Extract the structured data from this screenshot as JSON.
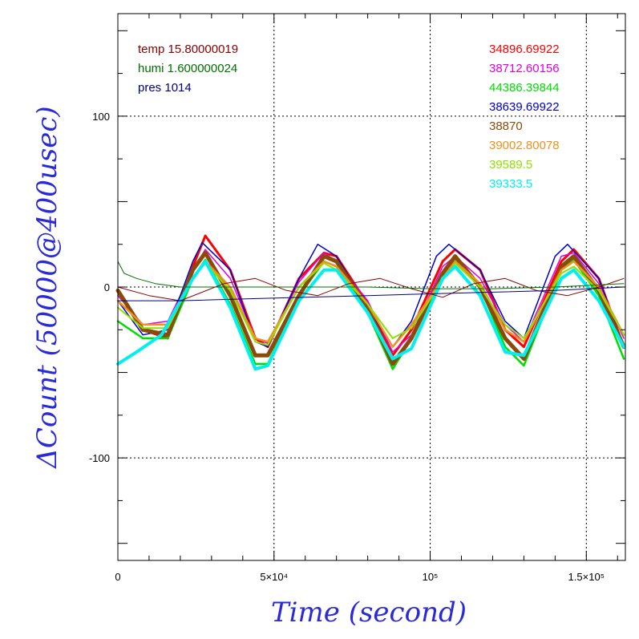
{
  "chart_data": {
    "type": "line",
    "xlabel": "Time (second)",
    "ylabel": "ΔCount (50000@400usec)",
    "xlim": [
      0,
      162500
    ],
    "ylim": [
      -160,
      160
    ],
    "x_ticks": [
      {
        "value": 0,
        "label": "0"
      },
      {
        "value": 50000,
        "label": "5×10⁴"
      },
      {
        "value": 100000,
        "label": "10⁵"
      },
      {
        "value": 150000,
        "label": "1.5×10⁵"
      }
    ],
    "y_ticks": [
      {
        "value": -100,
        "label": "-100"
      },
      {
        "value": 0,
        "label": "0"
      },
      {
        "value": 100,
        "label": "100"
      }
    ],
    "grid": true,
    "legend_env": [
      {
        "label": "temp 15.80000019",
        "color": "#8b0000"
      },
      {
        "label": "humi 1.600000024",
        "color": "#007000"
      },
      {
        "label": "pres 1014",
        "color": "#000080"
      }
    ],
    "legend_counts": [
      {
        "label": "34896.69922",
        "color": "#ff0000"
      },
      {
        "label": "38712.60156",
        "color": "#e000e0"
      },
      {
        "label": "44386.39844",
        "color": "#00dd00"
      },
      {
        "label": "38639.69922",
        "color": "#0000c8"
      },
      {
        "label": "38870",
        "color": "#8b4a0a"
      },
      {
        "label": "39002.80078",
        "color": "#f09020"
      },
      {
        "label": "39589.5",
        "color": "#90e000"
      },
      {
        "label": "39333.5",
        "color": "#00f0f0"
      }
    ],
    "series": [
      {
        "color": "#ff0000",
        "x": [
          0,
          8000,
          16000,
          24000,
          28000,
          36000,
          44000,
          48000,
          58000,
          66000,
          70000,
          80000,
          88000,
          94000,
          104000,
          108000,
          116000,
          124000,
          130000,
          142000,
          146000,
          154000,
          162000
        ],
        "y": [
          -2,
          -25,
          -30,
          12,
          30,
          10,
          -30,
          -35,
          5,
          20,
          18,
          -10,
          -40,
          -25,
          15,
          22,
          10,
          -25,
          -35,
          15,
          22,
          5,
          -35
        ],
        "width": 3
      },
      {
        "color": "#e000e0",
        "x": [
          0,
          8000,
          16000,
          24000,
          28000,
          36000,
          44000,
          48000,
          58000,
          66000,
          70000,
          80000,
          88000,
          94000,
          104000,
          108000,
          116000,
          124000,
          130000,
          142000,
          146000,
          154000,
          162000
        ],
        "y": [
          -5,
          -22,
          -20,
          10,
          22,
          5,
          -30,
          -33,
          3,
          20,
          15,
          -8,
          -38,
          -28,
          12,
          18,
          5,
          -22,
          -32,
          18,
          20,
          2,
          -30
        ],
        "width": 1.5
      },
      {
        "color": "#00dd00",
        "x": [
          0,
          8000,
          16000,
          24000,
          28000,
          36000,
          44000,
          48000,
          58000,
          66000,
          70000,
          80000,
          88000,
          94000,
          104000,
          108000,
          116000,
          124000,
          130000,
          142000,
          146000,
          154000,
          162000
        ],
        "y": [
          -20,
          -30,
          -30,
          5,
          16,
          -10,
          -45,
          -45,
          -5,
          15,
          12,
          -15,
          -48,
          -30,
          5,
          16,
          0,
          -35,
          -46,
          10,
          16,
          -5,
          -42
        ],
        "width": 2.5
      },
      {
        "color": "#0000c8",
        "x": [
          0,
          8000,
          16000,
          24000,
          27000,
          36000,
          44000,
          48000,
          58000,
          64000,
          70000,
          80000,
          88000,
          94000,
          102000,
          106000,
          116000,
          124000,
          130000,
          140000,
          144000,
          154000,
          162000
        ],
        "y": [
          -8,
          -28,
          -25,
          15,
          26,
          10,
          -32,
          -35,
          5,
          25,
          18,
          -12,
          -35,
          -20,
          18,
          25,
          10,
          -20,
          -30,
          18,
          25,
          5,
          -35
        ],
        "width": 1.5
      },
      {
        "color": "#8b4a0a",
        "x": [
          0,
          8000,
          16000,
          24000,
          28000,
          36000,
          44000,
          48000,
          58000,
          66000,
          70000,
          80000,
          88000,
          94000,
          104000,
          108000,
          116000,
          124000,
          130000,
          142000,
          146000,
          154000,
          162000
        ],
        "y": [
          -2,
          -25,
          -28,
          10,
          20,
          -5,
          -40,
          -40,
          -5,
          18,
          15,
          -12,
          -45,
          -30,
          8,
          18,
          0,
          -30,
          -42,
          12,
          18,
          -2,
          -35
        ],
        "width": 5
      },
      {
        "color": "#f09020",
        "x": [
          0,
          8000,
          16000,
          24000,
          28000,
          36000,
          44000,
          48000,
          58000,
          66000,
          70000,
          80000,
          88000,
          94000,
          104000,
          108000,
          116000,
          124000,
          130000,
          142000,
          146000,
          154000,
          162000
        ],
        "y": [
          -8,
          -22,
          -22,
          5,
          15,
          0,
          -30,
          -32,
          0,
          15,
          12,
          -10,
          -35,
          -22,
          5,
          15,
          2,
          -25,
          -32,
          10,
          15,
          0,
          -28
        ],
        "width": 2.5
      },
      {
        "color": "#90e000",
        "x": [
          0,
          8000,
          16000,
          24000,
          28000,
          36000,
          44000,
          48000,
          58000,
          66000,
          70000,
          80000,
          88000,
          94000,
          104000,
          108000,
          116000,
          124000,
          130000,
          142000,
          146000,
          154000,
          162000
        ],
        "y": [
          -12,
          -24,
          -24,
          5,
          14,
          -2,
          -32,
          -34,
          0,
          14,
          10,
          -10,
          -30,
          -24,
          4,
          14,
          0,
          -22,
          -30,
          8,
          12,
          -2,
          -28
        ],
        "width": 2
      },
      {
        "color": "#00f0f0",
        "x": [
          0,
          6000,
          14000,
          24000,
          28000,
          36000,
          44000,
          48000,
          58000,
          66000,
          70000,
          80000,
          88000,
          94000,
          104000,
          108000,
          116000,
          124000,
          130000,
          142000,
          146000,
          154000,
          162000
        ],
        "y": [
          -45,
          -38,
          -28,
          5,
          15,
          -12,
          -48,
          -46,
          -8,
          10,
          10,
          -15,
          -42,
          -36,
          5,
          12,
          -5,
          -38,
          -40,
          5,
          10,
          -8,
          -35
        ],
        "width": 4
      },
      {
        "color": "#8b0000",
        "x": [
          0,
          10000,
          20000,
          34000,
          44000,
          54000,
          64000,
          74000,
          84000,
          94000,
          104000,
          114000,
          124000,
          134000,
          144000,
          154000,
          162000
        ],
        "y": [
          0,
          -5,
          -8,
          2,
          5,
          -2,
          -5,
          2,
          5,
          -1,
          -6,
          2,
          5,
          -2,
          -5,
          0,
          5
        ],
        "width": 1
      },
      {
        "color": "#007000",
        "x": [
          0,
          2000,
          6000,
          12000,
          20000,
          40000,
          60000,
          80000,
          100000,
          120000,
          140000,
          162000
        ],
        "y": [
          15,
          8,
          5,
          2,
          0,
          0,
          0,
          0,
          -1,
          -1,
          0,
          2
        ],
        "width": 1
      },
      {
        "color": "#000080",
        "x": [
          0,
          20000,
          40000,
          60000,
          80000,
          100000,
          120000,
          140000,
          162000
        ],
        "y": [
          -8,
          -8,
          -7,
          -6,
          -5,
          -4,
          -3,
          -2,
          0
        ],
        "width": 1
      }
    ]
  }
}
